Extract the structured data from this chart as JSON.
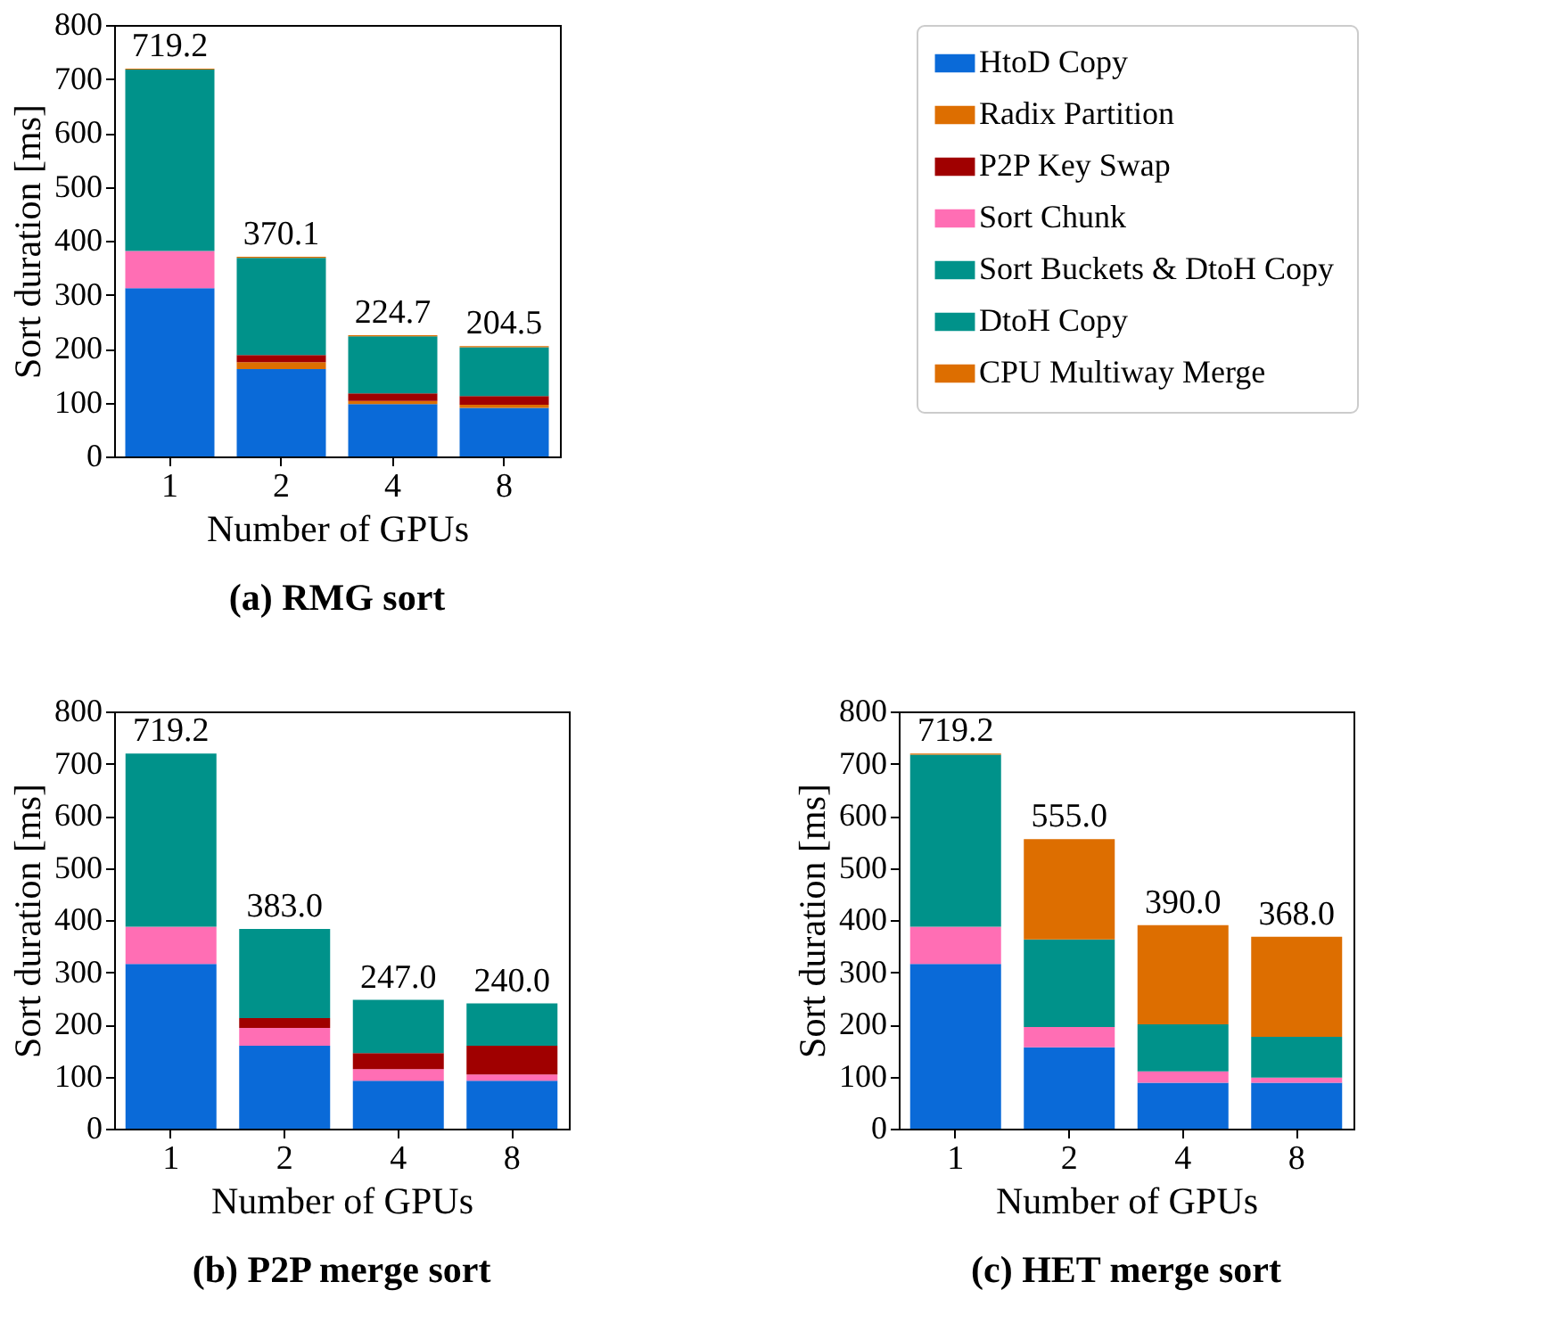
{
  "chart_data": [
    {
      "type": "bar",
      "stacked": true,
      "title": "(a) RMG sort",
      "xlabel": "Number of GPUs",
      "ylabel": "Sort duration [ms]",
      "categories": [
        "1",
        "2",
        "4",
        "8"
      ],
      "ylim": [
        0,
        800
      ],
      "yticks": [
        0,
        100,
        200,
        300,
        400,
        500,
        600,
        700,
        800
      ],
      "legend": "right",
      "totals": [
        "719.2",
        "370.1",
        "224.7",
        "204.5"
      ],
      "series": [
        {
          "name": "HtoD Copy",
          "color": "#0a6ad8",
          "values": [
            312,
            162,
            97,
            90
          ]
        },
        {
          "name": "Radix Partition",
          "color": "#dd6e00",
          "values": [
            null,
            13,
            6,
            6
          ]
        },
        {
          "name": "P2P Key Swap",
          "color": "#a00000",
          "values": [
            null,
            13,
            14,
            16
          ]
        },
        {
          "name": "Sort Chunk",
          "color": "#ff6eb4",
          "values": [
            69,
            null,
            null,
            null
          ]
        },
        {
          "name": "Sort Buckets & DtoH Copy",
          "color": "#00928a",
          "values": [
            null,
            180,
            105.7,
            90.5
          ]
        },
        {
          "name": "DtoH Copy",
          "color": "#00928a",
          "values": [
            336.2,
            null,
            null,
            null
          ]
        },
        {
          "name": "CPU Multiway Merge",
          "color": "#dd6e00",
          "values": [
            2,
            2.1,
            2,
            2
          ]
        }
      ]
    },
    {
      "type": "bar",
      "stacked": true,
      "title": "(b) P2P merge sort",
      "xlabel": "Number of GPUs",
      "ylabel": "Sort duration [ms]",
      "categories": [
        "1",
        "2",
        "4",
        "8"
      ],
      "ylim": [
        0,
        800
      ],
      "yticks": [
        0,
        100,
        200,
        300,
        400,
        500,
        600,
        700,
        800
      ],
      "totals": [
        "719.2",
        "383.0",
        "247.0",
        "240.0"
      ],
      "series": [
        {
          "color": "#0a6ad8",
          "values": [
            316,
            159,
            92,
            92
          ]
        },
        {
          "color": "#ff6eb4",
          "values": [
            71,
            34,
            22,
            12
          ]
        },
        {
          "color": "#a00000",
          "values": [
            null,
            19,
            31,
            55
          ]
        },
        {
          "color": "#00928a",
          "values": [
            332.2,
            171,
            102,
            81
          ]
        }
      ]
    },
    {
      "type": "bar",
      "stacked": true,
      "title": "(c) HET merge sort",
      "xlabel": "Number of GPUs",
      "ylabel": "Sort duration [ms]",
      "categories": [
        "1",
        "2",
        "4",
        "8"
      ],
      "ylim": [
        0,
        800
      ],
      "yticks": [
        0,
        100,
        200,
        300,
        400,
        500,
        600,
        700,
        800
      ],
      "totals": [
        "719.2",
        "555.0",
        "390.0",
        "368.0"
      ],
      "series": [
        {
          "color": "#0a6ad8",
          "values": [
            316,
            156,
            88,
            88
          ]
        },
        {
          "color": "#ff6eb4",
          "values": [
            71,
            39,
            22,
            10
          ]
        },
        {
          "color": "#00928a",
          "values": [
            330.2,
            168,
            90,
            78
          ]
        },
        {
          "color": "#dd6e00",
          "values": [
            2,
            192,
            190,
            192
          ]
        }
      ]
    }
  ]
}
